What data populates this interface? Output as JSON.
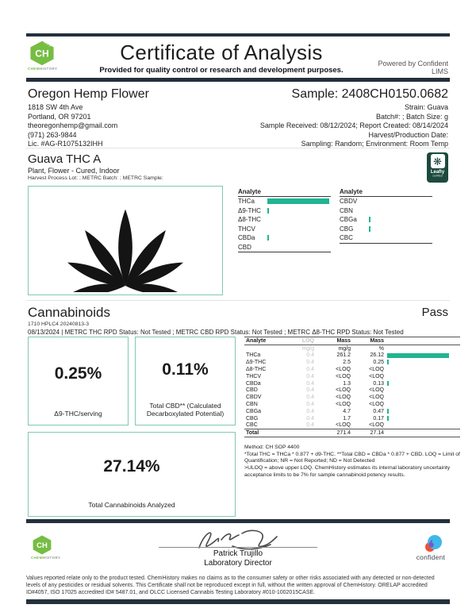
{
  "header": {
    "logo": {
      "initials": "CH",
      "brand_green": "CHEM",
      "brand_gray": "HISTORY"
    },
    "title": "Certificate of Analysis",
    "subtitle": "Provided for quality control or research and development purposes.",
    "powered_by": "Powered by Confident LIMS"
  },
  "client": {
    "name": "Oregon Hemp Flower",
    "address1": "1818 SW 4th Ave",
    "address2": "Portland, OR 97201",
    "email": "theoregonhemp@gmail.com",
    "phone": "(971) 263-9844",
    "license": "Lic. #AG-R1075132IHH"
  },
  "sample": {
    "title": "Sample: 2408CH0150.0682",
    "strain": "Strain: Guava",
    "batch": "Batch#: ; Batch Size:  g",
    "received": "Sample Received: 08/12/2024; Report Created: 08/14/2024",
    "harvest": "Harvest/Production Date:",
    "sampling": "Sampling: Random; Environment: Room Temp"
  },
  "product": {
    "name": "Guava THC A",
    "type": "Plant, Flower - Cured, Indoor",
    "meta": "Harvest Process Lot: ; METRC Batch: ; METRC Sample:",
    "badge": {
      "name": "Leafly",
      "sub": "certified"
    }
  },
  "cannabinoids": {
    "title": "Cannabinoids",
    "status": "Pass",
    "instrument": "1710 HPLC4 20240813-3",
    "statuses": "08/13/2024 | METRC THC RPD Status: Not Tested ; METRC CBD RPD Status: Not Tested ; METRC Δ8-THC RPD Status: Not Tested",
    "summary_boxes": [
      {
        "value": "0.25%",
        "label": "Δ9-THC/serving"
      },
      {
        "value": "0.11%",
        "label": "Total CBD** (Calculated Decarboxylated Potential)"
      },
      {
        "value": "27.14%",
        "label": "Total Cannabinoids Analyzed"
      }
    ],
    "method_lines": [
      "Method: CH SOP 4400",
      "*Total THC = THCa * 0.877 + d9-THC. **Total CBD = CBDa * 0.877 + CBD. LOQ = Limit of Quantification; NR = Not Reported; ND = Not Detected",
      ">ULOQ = above upper LOQ. ChemHistory estimates its internal laboratory uncertainty acceptance limits to be 7% for sample cannabinoid potency results."
    ]
  },
  "signature": {
    "name": "Patrick Trujillo",
    "title": "Laboratory Director",
    "confident_label": "confident"
  },
  "footer": {
    "text": "Values reported relate only to the product tested. ChemHistory makes no claims as to the consumer safety or other risks associated with any detected or non-detected levels of any pesticides or residual solvents. This Certificate shall not be reproduced except in full, without the written approval of ChemHistory.  ORELAP accredited ID#4057, ISO 17025 accredited ID# 5487.01, and OLCC Licensed Cannabis Testing Laboratory #010-1002015CASE."
  },
  "colors": {
    "accent_teal": "#21b492",
    "dark_bar": "#24303c",
    "box_border": "#82c7b4",
    "logo_green": "#76bd43",
    "leafly_green": "#1d4a3d",
    "confident_blue": "#3fb8ea",
    "confident_orange": "#f0502e",
    "confident_purple": "#7b57c5"
  },
  "chart_data": [
    {
      "type": "bar",
      "title": "Analyte overview column 1",
      "col_header": "Analyte",
      "categories": [
        "THCa",
        "Δ9-THC",
        "Δ8-THC",
        "THCV",
        "CBDa",
        "CBD"
      ],
      "values": [
        26.12,
        0.25,
        0,
        0,
        0.13,
        0
      ],
      "unit": "% mass",
      "xlim": [
        0,
        27
      ],
      "legend": "none",
      "grid": false
    },
    {
      "type": "bar",
      "title": "Analyte overview column 2",
      "col_header": "Analyte",
      "categories": [
        "CBDV",
        "CBN",
        "CBGa",
        "CBG",
        "CBC"
      ],
      "values": [
        0,
        0,
        0.47,
        0.17,
        0
      ],
      "unit": "% mass",
      "xlim": [
        0,
        27
      ],
      "legend": "none",
      "grid": false
    },
    {
      "type": "table",
      "title": "Cannabinoids results",
      "columns": [
        "Analyte",
        "LOQ",
        "Mass",
        "Mass"
      ],
      "units": [
        "",
        "mg/g",
        "mg/g",
        "%"
      ],
      "rows": [
        {
          "analyte": "THCa",
          "loq": "0.4",
          "mg_g": "261.2",
          "pct": "26.12",
          "bar": 26.12
        },
        {
          "analyte": "Δ9-THC",
          "loq": "0.4",
          "mg_g": "2.5",
          "pct": "0.25",
          "bar": 0.25
        },
        {
          "analyte": "Δ8-THC",
          "loq": "0.4",
          "mg_g": "<LOQ",
          "pct": "<LOQ",
          "bar": 0
        },
        {
          "analyte": "THCV",
          "loq": "0.4",
          "mg_g": "<LOQ",
          "pct": "<LOQ",
          "bar": 0
        },
        {
          "analyte": "CBDa",
          "loq": "0.4",
          "mg_g": "1.3",
          "pct": "0.13",
          "bar": 0.13
        },
        {
          "analyte": "CBD",
          "loq": "0.4",
          "mg_g": "<LOQ",
          "pct": "<LOQ",
          "bar": 0
        },
        {
          "analyte": "CBDV",
          "loq": "0.4",
          "mg_g": "<LOQ",
          "pct": "<LOQ",
          "bar": 0
        },
        {
          "analyte": "CBN",
          "loq": "0.4",
          "mg_g": "<LOQ",
          "pct": "<LOQ",
          "bar": 0
        },
        {
          "analyte": "CBGa",
          "loq": "0.4",
          "mg_g": "4.7",
          "pct": "0.47",
          "bar": 0.47
        },
        {
          "analyte": "CBG",
          "loq": "0.4",
          "mg_g": "1.7",
          "pct": "0.17",
          "bar": 0.17
        },
        {
          "analyte": "CBC",
          "loq": "0.4",
          "mg_g": "<LOQ",
          "pct": "<LOQ",
          "bar": 0
        }
      ],
      "total": {
        "analyte": "Total",
        "loq": "",
        "mg_g": "271.4",
        "pct": "27.14"
      }
    }
  ]
}
